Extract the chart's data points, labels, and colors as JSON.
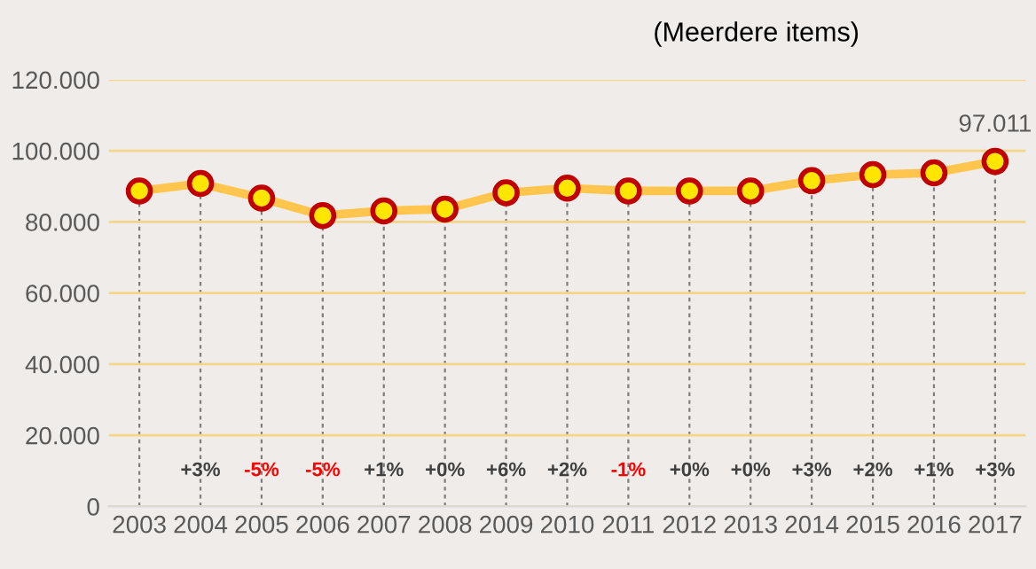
{
  "chart_data": {
    "type": "line",
    "title": "(Meerdere items)",
    "categories": [
      "2003",
      "2004",
      "2005",
      "2006",
      "2007",
      "2008",
      "2009",
      "2010",
      "2011",
      "2012",
      "2013",
      "2014",
      "2015",
      "2016",
      "2017"
    ],
    "series": [
      {
        "color": "#ffc54d",
        "values": [
          88700,
          90800,
          86700,
          81800,
          83100,
          83600,
          88200,
          89500,
          88700,
          88700,
          88700,
          91600,
          93300,
          93800,
          97011
        ],
        "value_labels": [
          null,
          null,
          null,
          null,
          null,
          null,
          null,
          null,
          null,
          null,
          null,
          null,
          null,
          null,
          "97.011"
        ]
      }
    ],
    "ylim": [
      0,
      120000
    ],
    "yticks": [
      {
        "value": 0,
        "label": "0"
      },
      {
        "value": 20000,
        "label": "20.000"
      },
      {
        "value": 40000,
        "label": "40.000"
      },
      {
        "value": 60000,
        "label": "60.000"
      },
      {
        "value": 80000,
        "label": "80.000"
      },
      {
        "value": 100000,
        "label": "100.000"
      },
      {
        "value": 120000,
        "label": "120.000"
      }
    ],
    "grid": true,
    "marker": "circle",
    "line_style": "solid",
    "legend": false,
    "annotations": [
      "+3%",
      "-5%",
      "-5%",
      "+1%",
      "+0%",
      "+6%",
      "+2%",
      "-1%",
      "+0%",
      "+0%",
      "+3%",
      "+2%",
      "+1%",
      "+3%"
    ]
  }
}
